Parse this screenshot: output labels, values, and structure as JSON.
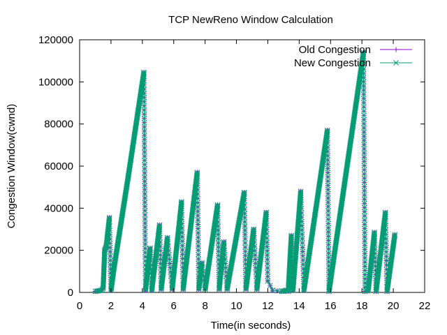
{
  "chart_data": {
    "type": "line",
    "title": "TCP NewReno Window Calculation",
    "xlabel": "Time(in seconds)",
    "ylabel": "Congestion Window(cwnd)",
    "xlim": [
      0,
      22
    ],
    "ylim": [
      0,
      120000
    ],
    "xticks": [
      0,
      2,
      4,
      6,
      8,
      10,
      12,
      14,
      16,
      18,
      20,
      22
    ],
    "yticks": [
      0,
      20000,
      40000,
      60000,
      80000,
      100000,
      120000
    ],
    "xtick_labels": [
      "0",
      "2",
      "4",
      "6",
      "8",
      "10",
      "12",
      "14",
      "16",
      "18",
      "20",
      "22"
    ],
    "ytick_labels": [
      "0",
      "20000",
      "40000",
      "60000",
      "80000",
      "100000",
      "120000"
    ],
    "grid": false,
    "legend_position": "top-right",
    "series": [
      {
        "name": "Old Congestion",
        "color": "#9400d3",
        "marker": "plus",
        "points": [
          [
            1.0,
            500
          ],
          [
            1.4,
            1000
          ],
          [
            1.5,
            2000
          ],
          [
            1.6,
            20000
          ],
          [
            1.7,
            22000
          ],
          [
            1.9,
            35500
          ],
          [
            2.0,
            1000
          ],
          [
            2.2,
            12000
          ],
          [
            3.1,
            55000
          ],
          [
            4.1,
            104500
          ],
          [
            4.2,
            1000
          ],
          [
            4.5,
            21000
          ],
          [
            4.6,
            1000
          ],
          [
            5.1,
            32000
          ],
          [
            5.2,
            1500
          ],
          [
            5.6,
            26000
          ],
          [
            5.9,
            1500
          ],
          [
            6.5,
            43000
          ],
          [
            6.6,
            1500
          ],
          [
            7.5,
            57000
          ],
          [
            7.6,
            1500
          ],
          [
            7.8,
            14000
          ],
          [
            8.0,
            1500
          ],
          [
            8.8,
            41500
          ],
          [
            8.9,
            1500
          ],
          [
            9.2,
            24000
          ],
          [
            9.4,
            1500
          ],
          [
            10.5,
            47500
          ],
          [
            10.6,
            1500
          ],
          [
            11.1,
            30000
          ],
          [
            11.3,
            1500
          ],
          [
            11.9,
            38000
          ],
          [
            12.0,
            5500
          ],
          [
            12.3,
            1000
          ],
          [
            12.9,
            500
          ],
          [
            13.2,
            1000
          ],
          [
            13.3,
            500
          ],
          [
            13.5,
            27000
          ],
          [
            13.6,
            1000
          ],
          [
            14.1,
            48000
          ],
          [
            14.3,
            1000
          ],
          [
            15.8,
            77000
          ],
          [
            15.9,
            500
          ],
          [
            18.1,
            114000
          ],
          [
            18.2,
            500
          ],
          [
            18.4,
            1000
          ],
          [
            18.8,
            28500
          ],
          [
            18.9,
            500
          ],
          [
            19.5,
            38000
          ],
          [
            19.6,
            500
          ],
          [
            20.1,
            27500
          ]
        ]
      },
      {
        "name": "New Congestion",
        "color": "#009e73",
        "marker": "x",
        "points": [
          [
            1.0,
            500
          ],
          [
            1.4,
            1000
          ],
          [
            1.5,
            2000
          ],
          [
            1.6,
            20000
          ],
          [
            1.7,
            22000
          ],
          [
            1.9,
            35500
          ],
          [
            2.0,
            1000
          ],
          [
            2.2,
            12000
          ],
          [
            3.1,
            55000
          ],
          [
            4.1,
            104500
          ],
          [
            4.2,
            1000
          ],
          [
            4.5,
            21000
          ],
          [
            4.6,
            1000
          ],
          [
            5.1,
            32000
          ],
          [
            5.2,
            1500
          ],
          [
            5.6,
            26000
          ],
          [
            5.9,
            1500
          ],
          [
            6.5,
            43000
          ],
          [
            6.6,
            1500
          ],
          [
            7.5,
            57000
          ],
          [
            7.6,
            1500
          ],
          [
            7.8,
            14000
          ],
          [
            8.0,
            1500
          ],
          [
            8.8,
            41500
          ],
          [
            8.9,
            1500
          ],
          [
            9.2,
            24000
          ],
          [
            9.4,
            1500
          ],
          [
            10.5,
            47500
          ],
          [
            10.6,
            1500
          ],
          [
            11.1,
            30000
          ],
          [
            11.3,
            1500
          ],
          [
            11.9,
            38000
          ],
          [
            12.0,
            5500
          ],
          [
            12.3,
            1000
          ],
          [
            12.9,
            500
          ],
          [
            13.2,
            1000
          ],
          [
            13.3,
            500
          ],
          [
            13.5,
            27000
          ],
          [
            13.6,
            1000
          ],
          [
            14.1,
            48000
          ],
          [
            14.3,
            1000
          ],
          [
            15.8,
            77000
          ],
          [
            15.9,
            500
          ],
          [
            18.1,
            114000
          ],
          [
            18.2,
            500
          ],
          [
            18.4,
            1000
          ],
          [
            18.8,
            28500
          ],
          [
            18.9,
            500
          ],
          [
            19.5,
            38000
          ],
          [
            19.6,
            500
          ],
          [
            20.1,
            27500
          ]
        ]
      }
    ]
  }
}
